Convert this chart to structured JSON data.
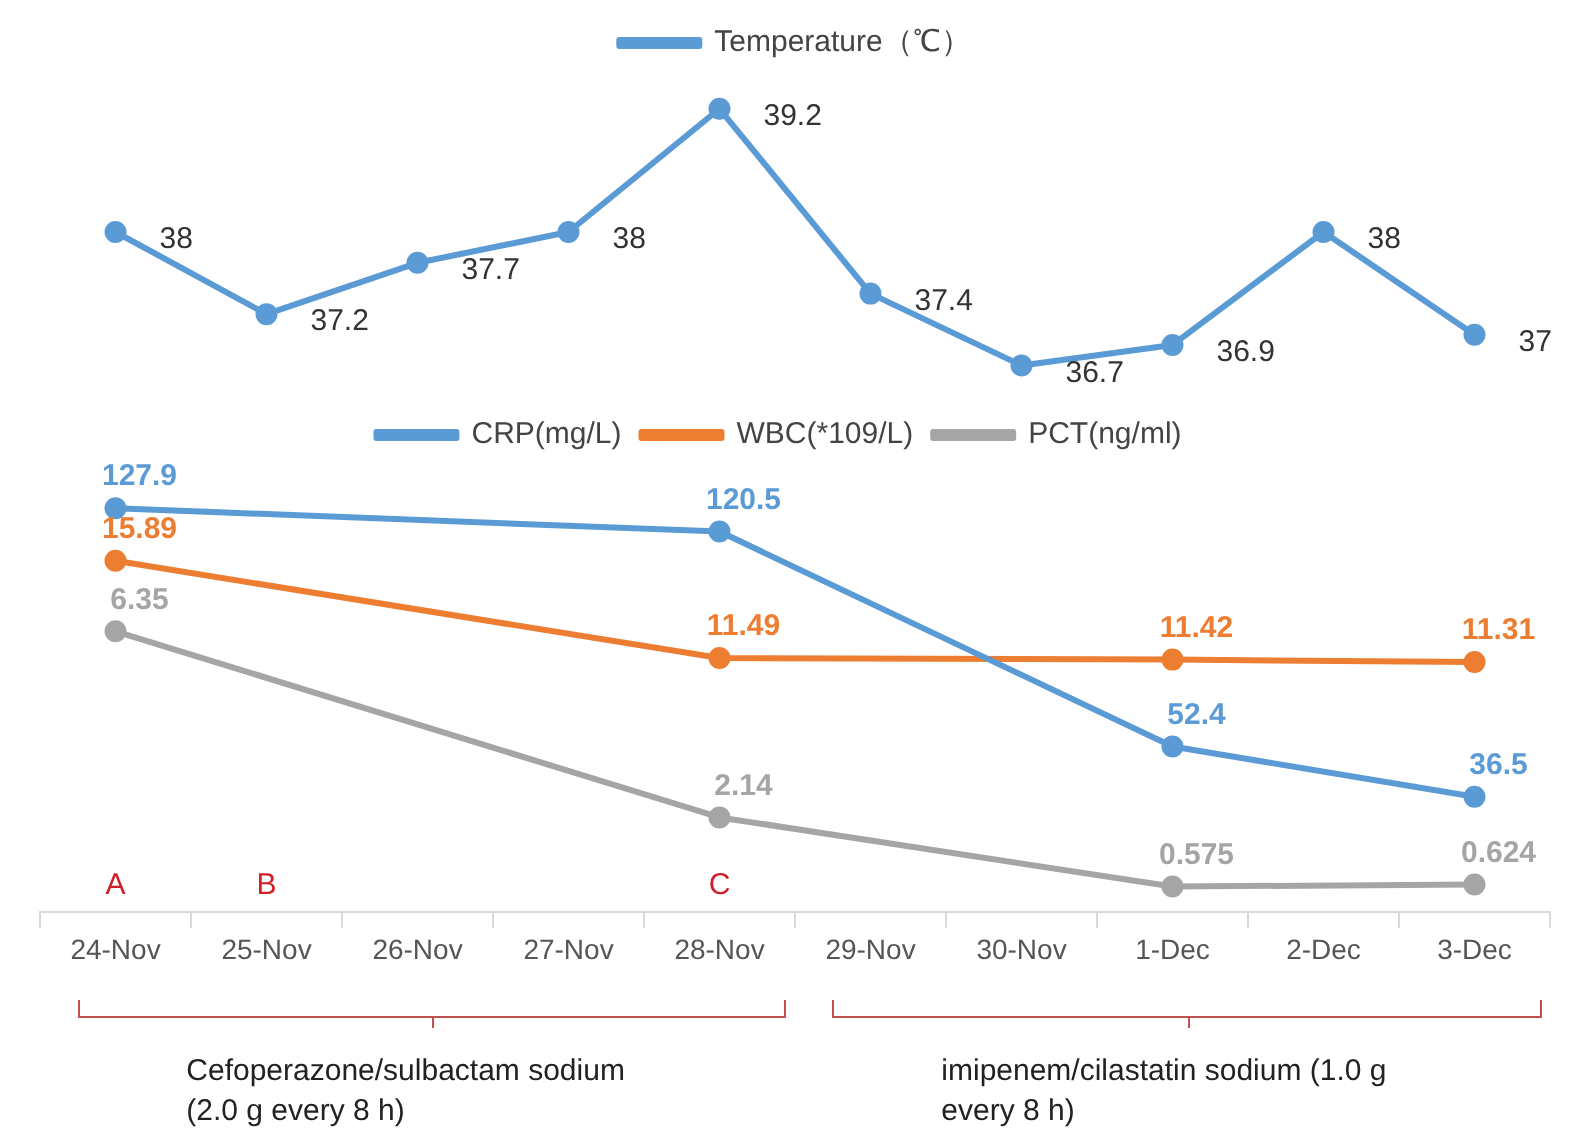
{
  "chart_data": [
    {
      "type": "line",
      "categories": [
        null,
        null,
        null,
        null,
        null,
        null,
        null,
        null,
        null,
        null
      ],
      "series": [
        {
          "name": "Temperature（℃）",
          "color": "#5b9bd5",
          "values": [
            38,
            37.2,
            37.7,
            38,
            39.2,
            37.4,
            36.7,
            36.9,
            38,
            37
          ]
        }
      ],
      "tick_labels": false,
      "legend": "top",
      "marker": "circle",
      "data_labels": true
    },
    {
      "type": "line",
      "categories": [
        "24-Nov",
        "25-Nov",
        "26-Nov",
        "27-Nov",
        "28-Nov",
        "29-Nov",
        "30-Nov",
        "1-Dec",
        "2-Dec",
        "3-Dec"
      ],
      "series": [
        {
          "name": "CRP(mg/L)",
          "color": "#5b9bd5",
          "values": [
            127.9,
            null,
            null,
            null,
            120.5,
            null,
            null,
            52.4,
            null,
            36.5
          ]
        },
        {
          "name": "WBC(*109/L)",
          "color": "#ed7d31",
          "axis": "y2",
          "values": [
            15.89,
            null,
            null,
            null,
            11.49,
            null,
            null,
            11.42,
            null,
            11.31
          ]
        }
      ],
      "tick_labels": "x",
      "legend": "top",
      "marker": "circle",
      "data_labels": true,
      "annotations": [
        "A",
        "B",
        "C",
        "Cefoperazone/sulbactam sodium (2.0 g every 8 h)",
        "imipenem/cilastatin sodium (1.0 g every 8 h)"
      ]
    },
    {
      "type": "line",
      "categories": [
        null,
        null,
        null,
        null,
        null,
        null,
        null,
        null,
        null,
        null
      ],
      "series": [
        {
          "name": "PCT(ng/ml)",
          "color": "#a5a5a5",
          "values": [
            6.35,
            null,
            null,
            null,
            2.14,
            null,
            null,
            0.575,
            null,
            0.624
          ]
        }
      ],
      "tick_labels": false,
      "legend": "top",
      "marker": "circle",
      "data_labels": true
    }
  ]
}
